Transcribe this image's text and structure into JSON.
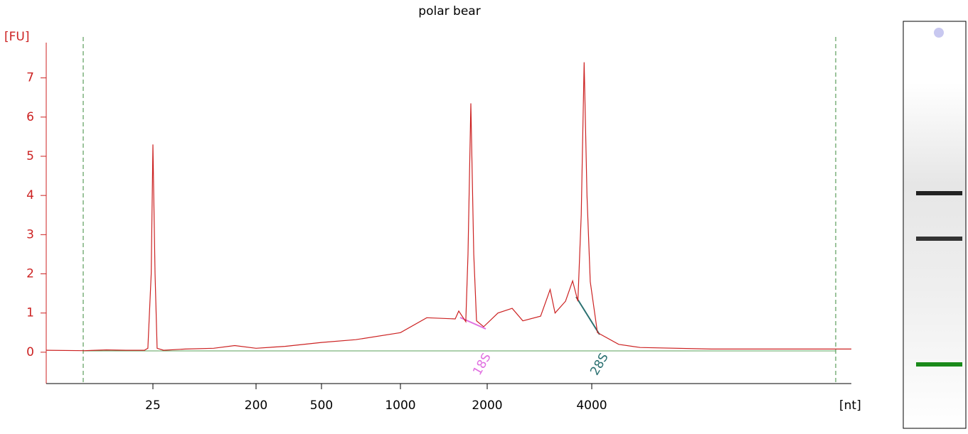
{
  "chart_data": {
    "type": "line",
    "title": "polar bear",
    "y_label": "[FU]",
    "x_label": "[nt]",
    "color": "#cc2222",
    "x": [
      15,
      18,
      20,
      22,
      24,
      24.4,
      24.8,
      25,
      26.1,
      27.2,
      31,
      48,
      85,
      130,
      200,
      300,
      500,
      675,
      1000,
      1234,
      1549,
      1593,
      1686,
      1716,
      1755,
      1796,
      1837,
      1944,
      2148,
      2360,
      2533,
      2850,
      3036,
      3136,
      3362,
      3524,
      3648,
      3730,
      3803,
      3875,
      3960,
      4081,
      4399,
      4745,
      6100,
      7840,
      10000
    ],
    "values": [
      0.05,
      0.04,
      0.06,
      0.05,
      0.05,
      0.1,
      2.0,
      5.3,
      2.0,
      0.1,
      0.05,
      0.08,
      0.1,
      0.17,
      0.1,
      0.15,
      0.25,
      0.32,
      0.5,
      0.88,
      0.85,
      1.05,
      0.78,
      2.5,
      6.35,
      2.5,
      0.8,
      0.65,
      1.0,
      1.12,
      0.8,
      0.92,
      1.6,
      1.0,
      1.3,
      1.82,
      1.3,
      3.5,
      7.4,
      4.0,
      1.8,
      0.5,
      0.2,
      0.12,
      0.08,
      0.08,
      0.08
    ],
    "xlim": [
      15,
      10000
    ],
    "xticks": [
      25,
      200,
      500,
      1000,
      2000,
      4000
    ],
    "ylim": [
      -0.8,
      7.9
    ],
    "yticks": [
      0,
      1,
      2,
      3,
      4,
      5,
      6,
      7
    ],
    "annotations": [
      "18S",
      "28S"
    ]
  }
}
